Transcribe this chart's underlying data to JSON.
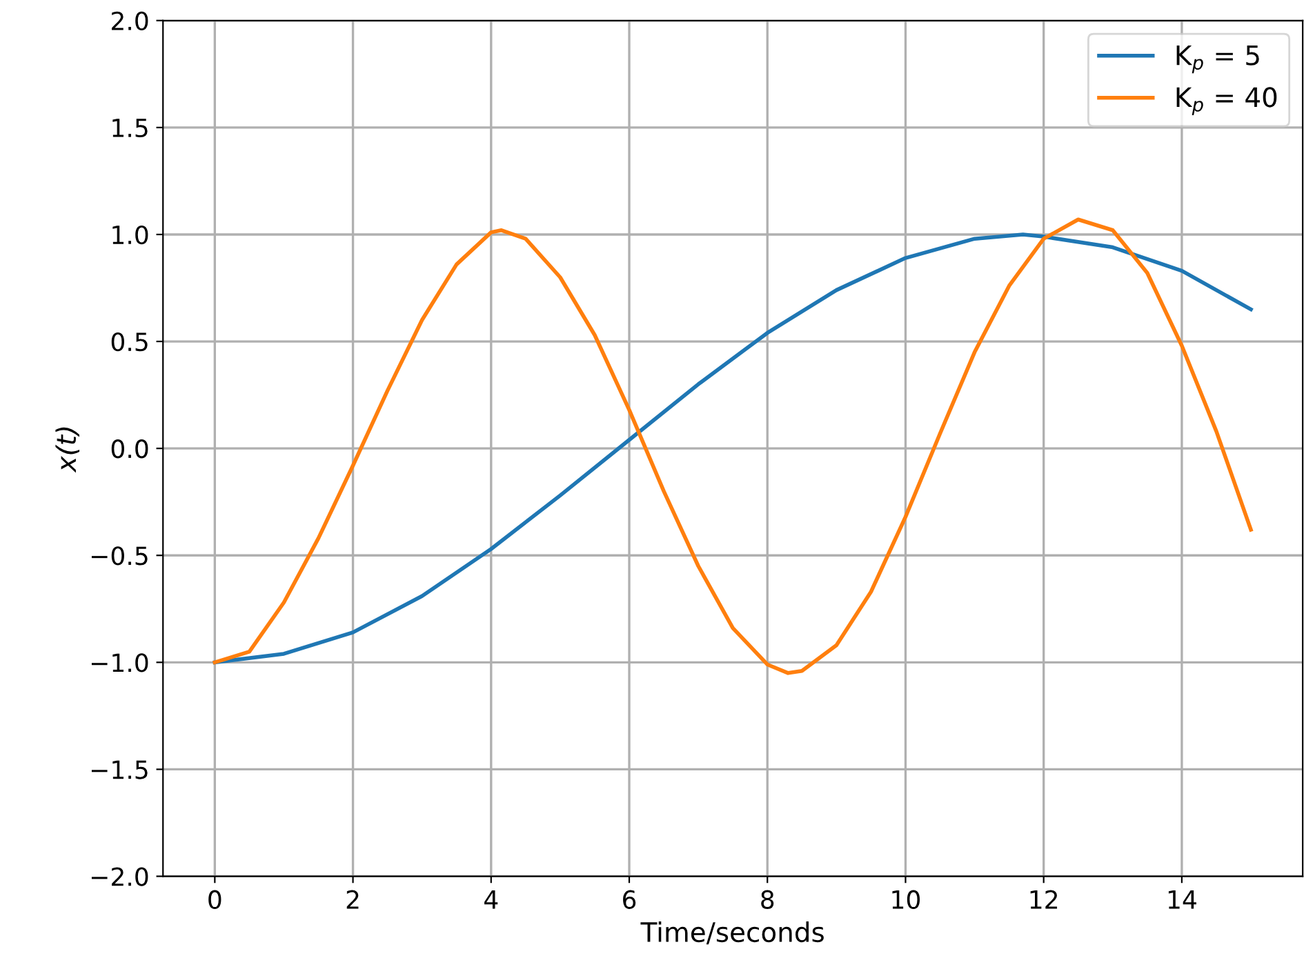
{
  "chart_data": {
    "type": "line",
    "xlabel": "Time/seconds",
    "ylabel": "x(t)",
    "xlim": [
      -0.75,
      15.75
    ],
    "ylim": [
      -2,
      2
    ],
    "xticks": [
      0,
      2,
      4,
      6,
      8,
      10,
      12,
      14
    ],
    "yticks": [
      {
        "value": -2,
        "label": "−2.0"
      },
      {
        "value": -1.5,
        "label": "−1.5"
      },
      {
        "value": -1,
        "label": "−1.0"
      },
      {
        "value": -0.5,
        "label": "−0.5"
      },
      {
        "value": 0,
        "label": "0.0"
      },
      {
        "value": 0.5,
        "label": "0.5"
      },
      {
        "value": 1,
        "label": "1.0"
      },
      {
        "value": 1.5,
        "label": "1.5"
      },
      {
        "value": 2,
        "label": "2.0"
      }
    ],
    "grid": true,
    "legend": "top right",
    "line_style": "solid",
    "marker": "none",
    "series": [
      {
        "name": "K$_{p}$ = 5",
        "color": "#1f77b4",
        "x": [
          0,
          1,
          2,
          3,
          4,
          5,
          6,
          7,
          8,
          9,
          10,
          11,
          11.7,
          12,
          13,
          14,
          15
        ],
        "values": [
          -1.0,
          -0.96,
          -0.86,
          -0.69,
          -0.47,
          -0.22,
          0.04,
          0.3,
          0.54,
          0.74,
          0.89,
          0.98,
          1.0,
          0.99,
          0.94,
          0.83,
          0.65
        ]
      },
      {
        "name": "K$_{p}$ = 40",
        "color": "#ff7f0e",
        "x": [
          0,
          0.5,
          1,
          1.5,
          2,
          2.5,
          3,
          3.5,
          4,
          4.15,
          4.5,
          5,
          5.5,
          6,
          6.5,
          7,
          7.5,
          8,
          8.3,
          8.5,
          9,
          9.5,
          10,
          10.5,
          11,
          11.5,
          12,
          12.5,
          13,
          13.5,
          14,
          14.5,
          15
        ],
        "values": [
          -1.0,
          -0.95,
          -0.72,
          -0.42,
          -0.08,
          0.27,
          0.6,
          0.86,
          1.01,
          1.02,
          0.98,
          0.8,
          0.53,
          0.18,
          -0.2,
          -0.55,
          -0.84,
          -1.01,
          -1.05,
          -1.04,
          -0.92,
          -0.67,
          -0.32,
          0.07,
          0.45,
          0.76,
          0.98,
          1.07,
          1.02,
          0.82,
          0.48,
          0.08,
          -0.38
        ]
      }
    ]
  }
}
